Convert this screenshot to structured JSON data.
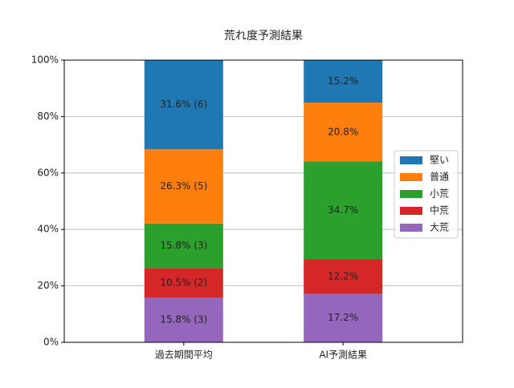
{
  "chart_data": {
    "type": "stacked_bar",
    "title": "荒れ度予測結果",
    "categories": [
      "過去期間平均",
      "AI予測結果"
    ],
    "series": [
      {
        "name": "大荒",
        "color": "#9467bd",
        "values": [
          15.8,
          17.2
        ],
        "value_labels": [
          "15.8% (3)",
          "17.2%"
        ]
      },
      {
        "name": "中荒",
        "color": "#d62728",
        "values": [
          10.5,
          12.2
        ],
        "value_labels": [
          "10.5% (2)",
          "12.2%"
        ]
      },
      {
        "name": "小荒",
        "color": "#2ca02c",
        "values": [
          15.8,
          34.7
        ],
        "value_labels": [
          "15.8% (3)",
          "34.7%"
        ]
      },
      {
        "name": "普通",
        "color": "#ff7f0e",
        "values": [
          26.3,
          20.8
        ],
        "value_labels": [
          "26.3% (5)",
          "20.8%"
        ]
      },
      {
        "name": "堅い",
        "color": "#1f77b4",
        "values": [
          31.6,
          15.2
        ],
        "value_labels": [
          "31.6% (6)",
          "15.2%"
        ]
      }
    ],
    "ylim": [
      0,
      100
    ],
    "yticks": [
      {
        "value": 0,
        "label": "0%"
      },
      {
        "value": 20,
        "label": "20%"
      },
      {
        "value": 40,
        "label": "40%"
      },
      {
        "value": 60,
        "label": "60%"
      },
      {
        "value": 80,
        "label": "80%"
      },
      {
        "value": 100,
        "label": "100%"
      }
    ],
    "grid": true,
    "legend": "right"
  }
}
